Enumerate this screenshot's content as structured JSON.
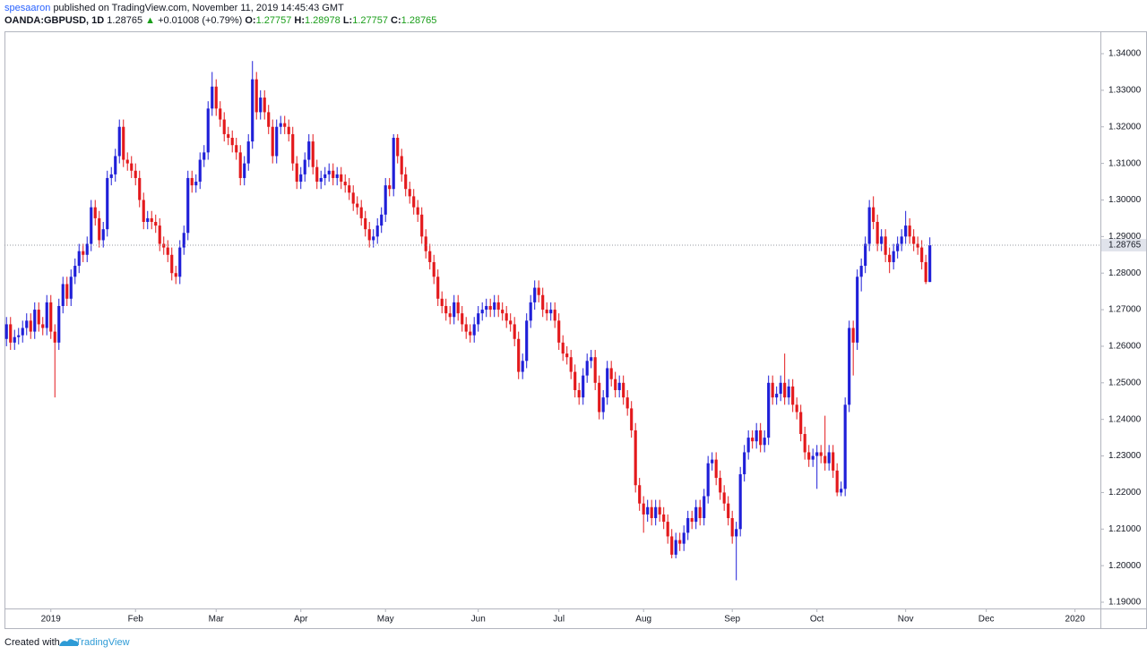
{
  "chart_data": {
    "type": "candlestick",
    "author": "spesaaron",
    "published": "published on TradingView.com, November 11, 2019 14:45:43 GMT",
    "symbol": "OANDA:GBPUSD, 1D",
    "last_text": "1.28765",
    "arrow": "▲",
    "change": "+0.01008 (+0.79%)",
    "ohlc_labels": [
      "O:",
      "H:",
      "L:",
      "C:"
    ],
    "ohlc_texts": [
      "1.27757",
      "1.28978",
      "1.27757",
      "1.28765"
    ],
    "footer_prefix": "Created with",
    "footer_brand": "TradingView",
    "up_color": "#1f1fd8",
    "down_color": "#e3191c",
    "last_price": 1.28765,
    "ylim": [
      1.18829,
      1.34612
    ],
    "yticks": [
      {
        "value": 1.19,
        "label": "1.19000"
      },
      {
        "value": 1.2,
        "label": "1.20000"
      },
      {
        "value": 1.21,
        "label": "1.21000"
      },
      {
        "value": 1.22,
        "label": "1.22000"
      },
      {
        "value": 1.23,
        "label": "1.23000"
      },
      {
        "value": 1.24,
        "label": "1.24000"
      },
      {
        "value": 1.25,
        "label": "1.25000"
      },
      {
        "value": 1.26,
        "label": "1.26000"
      },
      {
        "value": 1.27,
        "label": "1.27000"
      },
      {
        "value": 1.28,
        "label": "1.28000"
      },
      {
        "value": 1.29,
        "label": "1.29000"
      },
      {
        "value": 1.3,
        "label": "1.30000"
      },
      {
        "value": 1.31,
        "label": "1.31000"
      },
      {
        "value": 1.32,
        "label": "1.32000"
      },
      {
        "value": 1.33,
        "label": "1.33000"
      },
      {
        "value": 1.34,
        "label": "1.34000"
      }
    ],
    "xlim": [
      -0.5,
      271.3
    ],
    "xticks": [
      {
        "value": 11,
        "label": "2019"
      },
      {
        "value": 32,
        "label": "Feb"
      },
      {
        "value": 52,
        "label": "Mar"
      },
      {
        "value": 73,
        "label": "Apr"
      },
      {
        "value": 94,
        "label": "May"
      },
      {
        "value": 117,
        "label": "Jun"
      },
      {
        "value": 137,
        "label": "Jul"
      },
      {
        "value": 158,
        "label": "Aug"
      },
      {
        "value": 180,
        "label": "Sep"
      },
      {
        "value": 201,
        "label": "Oct"
      },
      {
        "value": 223,
        "label": "Nov"
      },
      {
        "value": 243,
        "label": "Dec"
      },
      {
        "value": 265,
        "label": "2020"
      }
    ],
    "open": [
      1.262,
      1.266,
      1.261,
      1.2625,
      1.263,
      1.265,
      1.267,
      1.264,
      1.27,
      1.266,
      1.265,
      1.272,
      1.264,
      1.261,
      1.271,
      1.277,
      1.273,
      1.279,
      1.282,
      1.286,
      1.285,
      1.288,
      1.298,
      1.295,
      1.289,
      1.292,
      1.306,
      1.307,
      1.312,
      1.32,
      1.311,
      1.31,
      1.308,
      1.306,
      1.3,
      1.294,
      1.295,
      1.294,
      1.293,
      1.288,
      1.287,
      1.285,
      1.28,
      1.279,
      1.287,
      1.291,
      1.306,
      1.304,
      1.305,
      1.311,
      1.313,
      1.325,
      1.331,
      1.325,
      1.322,
      1.318,
      1.317,
      1.315,
      1.313,
      1.306,
      1.31,
      1.316,
      1.333,
      1.324,
      1.328,
      1.324,
      1.32,
      1.312,
      1.32,
      1.321,
      1.32,
      1.318,
      1.31,
      1.305,
      1.307,
      1.311,
      1.316,
      1.309,
      1.305,
      1.306,
      1.307,
      1.308,
      1.306,
      1.307,
      1.305,
      1.304,
      1.302,
      1.299,
      1.298,
      1.295,
      1.292,
      1.289,
      1.29,
      1.293,
      1.296,
      1.304,
      1.303,
      1.317,
      1.312,
      1.307,
      1.303,
      1.301,
      1.298,
      1.296,
      1.29,
      1.286,
      1.283,
      1.279,
      1.273,
      1.271,
      1.269,
      1.268,
      1.272,
      1.269,
      1.266,
      1.264,
      1.263,
      1.266,
      1.269,
      1.27,
      1.271,
      1.27,
      1.272,
      1.27,
      1.269,
      1.267,
      1.266,
      1.262,
      1.253,
      1.256,
      1.267,
      1.272,
      1.276,
      1.274,
      1.27,
      1.269,
      1.27,
      1.267,
      1.261,
      1.258,
      1.257,
      1.253,
      1.248,
      1.246,
      1.252,
      1.256,
      1.257,
      1.25,
      1.242,
      1.246,
      1.254,
      1.251,
      1.248,
      1.25,
      1.246,
      1.243,
      1.237,
      1.222,
      1.217,
      1.214,
      1.216,
      1.213,
      1.216,
      1.214,
      1.212,
      1.208,
      1.203,
      1.207,
      1.206,
      1.209,
      1.213,
      1.212,
      1.216,
      1.213,
      1.219,
      1.228,
      1.229,
      1.224,
      1.22,
      1.217,
      1.213,
      1.208,
      1.21,
      1.225,
      1.231,
      1.235,
      1.234,
      1.237,
      1.233,
      1.235,
      1.25,
      1.246,
      1.247,
      1.25,
      1.246,
      1.249,
      1.244,
      1.242,
      1.236,
      1.231,
      1.229,
      1.23,
      1.231,
      1.23,
      1.228,
      1.231,
      1.226,
      1.22,
      1.221,
      1.244,
      1.265,
      1.261,
      1.279,
      1.282,
      1.288,
      1.298,
      1.294,
      1.288,
      1.29,
      1.285,
      1.283,
      1.286,
      1.288,
      1.29,
      1.293,
      1.29,
      1.288,
      1.287,
      1.283,
      1.27757
    ],
    "high": [
      1.268,
      1.268,
      1.2645,
      1.265,
      1.267,
      1.269,
      1.269,
      1.272,
      1.272,
      1.268,
      1.274,
      1.274,
      1.266,
      1.273,
      1.279,
      1.279,
      1.281,
      1.284,
      1.288,
      1.288,
      1.29,
      1.3,
      1.3,
      1.297,
      1.294,
      1.308,
      1.309,
      1.314,
      1.322,
      1.322,
      1.313,
      1.312,
      1.31,
      1.308,
      1.302,
      1.297,
      1.297,
      1.296,
      1.295,
      1.29,
      1.289,
      1.287,
      1.282,
      1.289,
      1.293,
      1.308,
      1.308,
      1.307,
      1.313,
      1.315,
      1.327,
      1.335,
      1.333,
      1.327,
      1.324,
      1.32,
      1.319,
      1.317,
      1.315,
      1.312,
      1.318,
      1.338,
      1.335,
      1.33,
      1.33,
      1.326,
      1.322,
      1.322,
      1.323,
      1.323,
      1.322,
      1.32,
      1.312,
      1.309,
      1.313,
      1.318,
      1.318,
      1.311,
      1.308,
      1.309,
      1.31,
      1.31,
      1.309,
      1.309,
      1.307,
      1.306,
      1.304,
      1.301,
      1.3,
      1.297,
      1.294,
      1.292,
      1.295,
      1.298,
      1.306,
      1.306,
      1.318,
      1.318,
      1.314,
      1.309,
      1.305,
      1.303,
      1.3,
      1.298,
      1.292,
      1.288,
      1.285,
      1.281,
      1.275,
      1.273,
      1.271,
      1.274,
      1.274,
      1.271,
      1.268,
      1.266,
      1.268,
      1.271,
      1.272,
      1.273,
      1.273,
      1.274,
      1.274,
      1.272,
      1.271,
      1.269,
      1.268,
      1.264,
      1.258,
      1.269,
      1.274,
      1.278,
      1.278,
      1.276,
      1.272,
      1.272,
      1.272,
      1.269,
      1.263,
      1.26,
      1.259,
      1.255,
      1.25,
      1.254,
      1.258,
      1.259,
      1.259,
      1.252,
      1.248,
      1.256,
      1.256,
      1.253,
      1.252,
      1.252,
      1.248,
      1.245,
      1.239,
      1.224,
      1.219,
      1.218,
      1.218,
      1.218,
      1.218,
      1.216,
      1.214,
      1.21,
      1.209,
      1.209,
      1.211,
      1.215,
      1.215,
      1.218,
      1.218,
      1.221,
      1.23,
      1.231,
      1.231,
      1.226,
      1.222,
      1.219,
      1.215,
      1.212,
      1.227,
      1.233,
      1.237,
      1.237,
      1.239,
      1.239,
      1.237,
      1.252,
      1.252,
      1.249,
      1.252,
      1.258,
      1.251,
      1.251,
      1.246,
      1.244,
      1.238,
      1.233,
      1.232,
      1.233,
      1.233,
      1.241,
      1.233,
      1.233,
      1.228,
      1.223,
      1.246,
      1.267,
      1.267,
      1.281,
      1.284,
      1.29,
      1.3,
      1.301,
      1.296,
      1.292,
      1.292,
      1.287,
      1.288,
      1.29,
      1.292,
      1.297,
      1.295,
      1.292,
      1.29,
      1.289,
      1.285,
      1.28978
    ],
    "low": [
      1.26,
      1.259,
      1.259,
      1.2605,
      1.261,
      1.263,
      1.262,
      1.262,
      1.264,
      1.263,
      1.263,
      1.262,
      1.246,
      1.259,
      1.269,
      1.271,
      1.271,
      1.277,
      1.28,
      1.283,
      1.283,
      1.286,
      1.293,
      1.287,
      1.287,
      1.29,
      1.304,
      1.305,
      1.31,
      1.309,
      1.308,
      1.306,
      1.304,
      1.298,
      1.292,
      1.292,
      1.292,
      1.291,
      1.286,
      1.285,
      1.283,
      1.278,
      1.277,
      1.277,
      1.285,
      1.289,
      1.302,
      1.302,
      1.303,
      1.309,
      1.311,
      1.323,
      1.323,
      1.32,
      1.316,
      1.315,
      1.313,
      1.311,
      1.304,
      1.304,
      1.308,
      1.314,
      1.322,
      1.322,
      1.322,
      1.318,
      1.31,
      1.31,
      1.318,
      1.318,
      1.316,
      1.308,
      1.303,
      1.303,
      1.305,
      1.309,
      1.307,
      1.303,
      1.303,
      1.304,
      1.305,
      1.304,
      1.304,
      1.303,
      1.302,
      1.3,
      1.297,
      1.296,
      1.293,
      1.29,
      1.287,
      1.287,
      1.288,
      1.291,
      1.294,
      1.301,
      1.301,
      1.31,
      1.305,
      1.301,
      1.299,
      1.296,
      1.294,
      1.288,
      1.284,
      1.281,
      1.277,
      1.271,
      1.269,
      1.267,
      1.266,
      1.266,
      1.267,
      1.264,
      1.262,
      1.261,
      1.261,
      1.264,
      1.267,
      1.268,
      1.268,
      1.268,
      1.268,
      1.267,
      1.265,
      1.264,
      1.26,
      1.251,
      1.251,
      1.254,
      1.265,
      1.27,
      1.272,
      1.268,
      1.267,
      1.267,
      1.265,
      1.259,
      1.256,
      1.255,
      1.251,
      1.246,
      1.244,
      1.244,
      1.25,
      1.254,
      1.248,
      1.24,
      1.24,
      1.244,
      1.249,
      1.246,
      1.246,
      1.244,
      1.241,
      1.235,
      1.22,
      1.215,
      1.209,
      1.212,
      1.211,
      1.211,
      1.212,
      1.21,
      1.206,
      1.202,
      1.202,
      1.204,
      1.204,
      1.207,
      1.21,
      1.21,
      1.211,
      1.211,
      1.217,
      1.226,
      1.222,
      1.218,
      1.215,
      1.211,
      1.206,
      1.196,
      1.208,
      1.223,
      1.229,
      1.232,
      1.232,
      1.231,
      1.231,
      1.233,
      1.244,
      1.244,
      1.245,
      1.244,
      1.244,
      1.242,
      1.24,
      1.234,
      1.229,
      1.227,
      1.227,
      1.221,
      1.228,
      1.226,
      1.226,
      1.224,
      1.219,
      1.219,
      1.219,
      1.242,
      1.252,
      1.259,
      1.275,
      1.28,
      1.286,
      1.292,
      1.286,
      1.286,
      1.283,
      1.28,
      1.281,
      1.284,
      1.286,
      1.288,
      1.288,
      1.286,
      1.285,
      1.281,
      1.277,
      1.27757
    ],
    "close": [
      1.266,
      1.261,
      1.2625,
      1.263,
      1.265,
      1.267,
      1.264,
      1.27,
      1.266,
      1.265,
      1.272,
      1.264,
      1.261,
      1.271,
      1.277,
      1.273,
      1.279,
      1.282,
      1.286,
      1.285,
      1.288,
      1.298,
      1.295,
      1.289,
      1.292,
      1.306,
      1.307,
      1.312,
      1.32,
      1.311,
      1.31,
      1.308,
      1.306,
      1.3,
      1.294,
      1.295,
      1.294,
      1.293,
      1.288,
      1.287,
      1.285,
      1.28,
      1.279,
      1.287,
      1.291,
      1.306,
      1.304,
      1.305,
      1.311,
      1.313,
      1.325,
      1.331,
      1.325,
      1.322,
      1.318,
      1.317,
      1.315,
      1.313,
      1.306,
      1.31,
      1.316,
      1.333,
      1.324,
      1.328,
      1.324,
      1.32,
      1.312,
      1.32,
      1.321,
      1.32,
      1.318,
      1.31,
      1.305,
      1.307,
      1.311,
      1.316,
      1.309,
      1.305,
      1.306,
      1.307,
      1.308,
      1.306,
      1.307,
      1.305,
      1.304,
      1.302,
      1.299,
      1.298,
      1.295,
      1.292,
      1.289,
      1.29,
      1.293,
      1.296,
      1.304,
      1.303,
      1.317,
      1.312,
      1.307,
      1.303,
      1.301,
      1.298,
      1.296,
      1.29,
      1.286,
      1.283,
      1.279,
      1.273,
      1.271,
      1.269,
      1.268,
      1.272,
      1.269,
      1.266,
      1.264,
      1.263,
      1.266,
      1.269,
      1.27,
      1.271,
      1.27,
      1.272,
      1.27,
      1.269,
      1.267,
      1.266,
      1.262,
      1.253,
      1.256,
      1.267,
      1.272,
      1.276,
      1.274,
      1.27,
      1.269,
      1.27,
      1.267,
      1.261,
      1.258,
      1.257,
      1.253,
      1.248,
      1.246,
      1.252,
      1.256,
      1.257,
      1.25,
      1.242,
      1.246,
      1.254,
      1.251,
      1.248,
      1.25,
      1.246,
      1.243,
      1.237,
      1.222,
      1.217,
      1.214,
      1.216,
      1.213,
      1.216,
      1.214,
      1.212,
      1.208,
      1.203,
      1.207,
      1.206,
      1.209,
      1.213,
      1.212,
      1.216,
      1.213,
      1.219,
      1.228,
      1.229,
      1.224,
      1.22,
      1.217,
      1.213,
      1.208,
      1.21,
      1.225,
      1.231,
      1.235,
      1.234,
      1.237,
      1.233,
      1.235,
      1.25,
      1.246,
      1.247,
      1.25,
      1.246,
      1.249,
      1.244,
      1.242,
      1.236,
      1.231,
      1.229,
      1.23,
      1.231,
      1.23,
      1.228,
      1.231,
      1.226,
      1.22,
      1.221,
      1.244,
      1.265,
      1.261,
      1.279,
      1.282,
      1.288,
      1.298,
      1.294,
      1.288,
      1.29,
      1.285,
      1.283,
      1.286,
      1.288,
      1.29,
      1.293,
      1.29,
      1.288,
      1.287,
      1.283,
      1.27757,
      1.28765
    ]
  }
}
